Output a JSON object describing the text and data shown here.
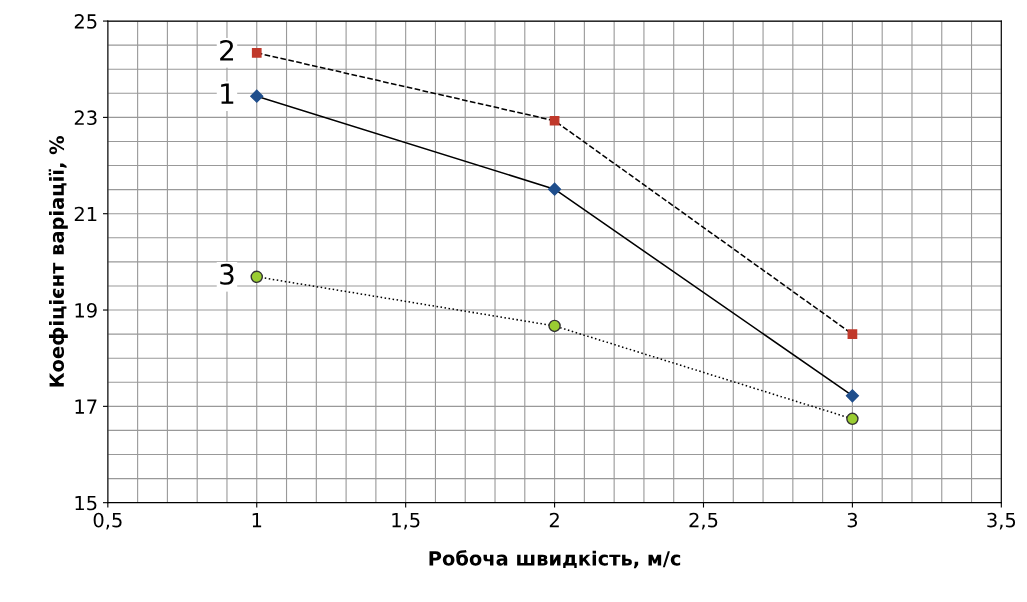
{
  "chart_data": {
    "type": "line",
    "xlabel": "Робоча швидкість, м/с",
    "ylabel": "Коефіцієнт варіації, %",
    "x": [
      1,
      2,
      3
    ],
    "series": [
      {
        "name": "1",
        "color": "#1f4e8c",
        "values": [
          23.44,
          21.51,
          17.22
        ],
        "marker": "diamond",
        "line_style": "solid"
      },
      {
        "name": "2",
        "color": "#c0392b",
        "values": [
          24.34,
          22.93,
          18.5
        ],
        "marker": "square",
        "line_style": "dashed"
      },
      {
        "name": "3",
        "color": "#9acd32",
        "values": [
          19.69,
          18.67,
          16.74
        ],
        "marker": "circle",
        "line_style": "dotted"
      }
    ],
    "xlim": [
      0.5,
      3.5
    ],
    "xticks": [
      {
        "value": 0.5,
        "label": "0,5"
      },
      1,
      {
        "value": 1.5,
        "label": "1,5"
      },
      2,
      {
        "value": 2.5,
        "label": "2,5"
      },
      3,
      {
        "value": 3.5,
        "label": "3,5"
      }
    ],
    "ylim": [
      15,
      25
    ],
    "yticks": [
      15,
      17,
      19,
      21,
      23,
      25
    ],
    "grid": true,
    "legend": false
  }
}
